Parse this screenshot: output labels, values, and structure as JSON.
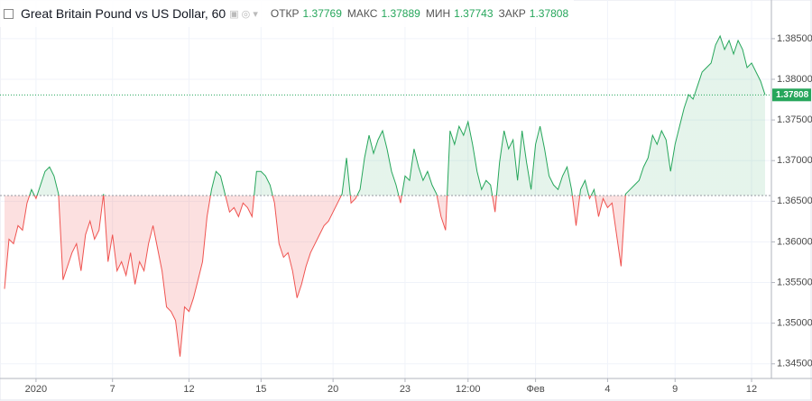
{
  "header": {
    "title": "Great Britain Pound vs US Dollar, 60",
    "ohlc": [
      {
        "label": "ОТКР",
        "value": 1.37769
      },
      {
        "label": "МАКС",
        "value": 1.37889
      },
      {
        "label": "МИН",
        "value": 1.37743
      },
      {
        "label": "ЗАКР",
        "value": 1.37808
      }
    ]
  },
  "chart_data": {
    "type": "baseline",
    "values": [
      1.35422,
      1.36033,
      1.35978,
      1.362,
      1.36144,
      1.36478,
      1.36644,
      1.36533,
      1.367,
      1.36867,
      1.36922,
      1.36811,
      1.36589,
      1.35533,
      1.357,
      1.35867,
      1.35978,
      1.35644,
      1.36089,
      1.36256,
      1.36033,
      1.36144,
      1.36589,
      1.35756,
      1.36089,
      1.35644,
      1.35756,
      1.35589,
      1.35867,
      1.35478,
      1.35756,
      1.35644,
      1.35978,
      1.362,
      1.35922,
      1.35644,
      1.352,
      1.35144,
      1.35033,
      1.34589,
      1.352,
      1.35144,
      1.35311,
      1.35533,
      1.35756,
      1.36311,
      1.36644,
      1.36867,
      1.36811,
      1.36589,
      1.36367,
      1.36422,
      1.36311,
      1.36478,
      1.36422,
      1.36311,
      1.36867,
      1.36867,
      1.36811,
      1.367,
      1.36478,
      1.35978,
      1.35811,
      1.35867,
      1.35644,
      1.35311,
      1.35478,
      1.357,
      1.35867,
      1.35978,
      1.36089,
      1.362,
      1.36256,
      1.36367,
      1.36478,
      1.36589,
      1.37033,
      1.36478,
      1.36533,
      1.36644,
      1.37033,
      1.37311,
      1.37089,
      1.37256,
      1.37367,
      1.37144,
      1.36867,
      1.367,
      1.36478,
      1.36811,
      1.36756,
      1.37144,
      1.36922,
      1.36756,
      1.36867,
      1.367,
      1.36589,
      1.36311,
      1.36144,
      1.37367,
      1.372,
      1.37422,
      1.37311,
      1.37478,
      1.372,
      1.36867,
      1.36644,
      1.36756,
      1.367,
      1.36367,
      1.36978,
      1.37367,
      1.37144,
      1.37256,
      1.36756,
      1.37367,
      1.36978,
      1.36644,
      1.372,
      1.37422,
      1.37144,
      1.36811,
      1.367,
      1.36644,
      1.36811,
      1.36922,
      1.36644,
      1.362,
      1.36644,
      1.36756,
      1.36533,
      1.36644,
      1.36311,
      1.36533,
      1.36422,
      1.36478,
      1.36089,
      1.357,
      1.36589,
      1.36644,
      1.367,
      1.36756,
      1.36922,
      1.37033,
      1.37311,
      1.372,
      1.37367,
      1.37256,
      1.36867,
      1.372,
      1.37422,
      1.37644,
      1.37811,
      1.37756,
      1.37922,
      1.38089,
      1.38144,
      1.382,
      1.38422,
      1.38533,
      1.38367,
      1.38478,
      1.38311,
      1.38478,
      1.38367,
      1.38144,
      1.382,
      1.38089,
      1.37978,
      1.37808
    ],
    "baseline": 1.3657,
    "up_color": "#26a65b",
    "down_color": "#ef5350",
    "last_price": 1.37808,
    "xlim": [
      0,
      169
    ],
    "ylim": [
      1.3432,
      1.3892
    ],
    "xticks": [
      {
        "value": 7,
        "label": "2020"
      },
      {
        "value": 24,
        "label": "7"
      },
      {
        "value": 41,
        "label": "12"
      },
      {
        "value": 57,
        "label": "15"
      },
      {
        "value": 73,
        "label": "20"
      },
      {
        "value": 89,
        "label": "23"
      },
      {
        "value": 103,
        "label": "12:00"
      },
      {
        "value": 118,
        "label": "Фев"
      },
      {
        "value": 134,
        "label": "4"
      },
      {
        "value": 149,
        "label": "9"
      },
      {
        "value": 166,
        "label": "12"
      }
    ],
    "yticks": [
      {
        "value": 1.345,
        "label": "1.34500"
      },
      {
        "value": 1.35,
        "label": "1.35000"
      },
      {
        "value": 1.355,
        "label": "1.35500"
      },
      {
        "value": 1.36,
        "label": "1.36000"
      },
      {
        "value": 1.365,
        "label": "1.36500"
      },
      {
        "value": 1.37,
        "label": "1.37000"
      },
      {
        "value": 1.375,
        "label": "1.37500"
      },
      {
        "value": 1.38,
        "label": "1.38000"
      },
      {
        "value": 1.385,
        "label": "1.38500"
      }
    ],
    "grid": true
  }
}
